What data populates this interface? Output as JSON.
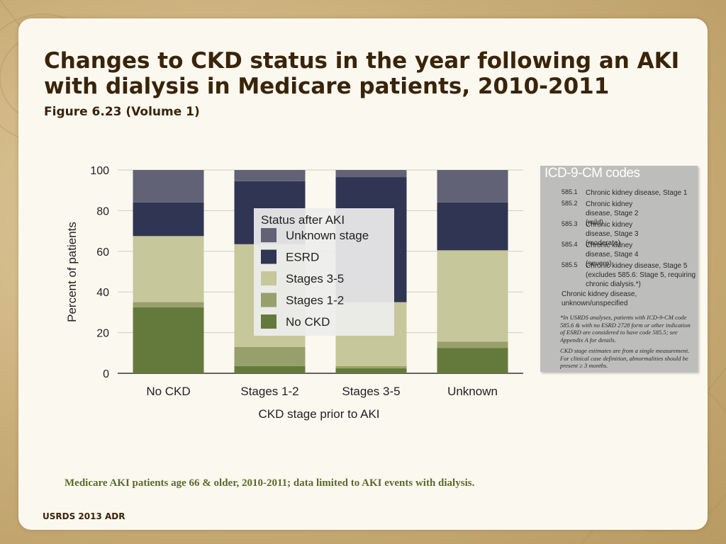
{
  "slide": {
    "title": "Changes to CKD status in the year following an AKI with dialysis in Medicare patients, 2010-2011",
    "subtitle": "Figure 6.23 (Volume 1)",
    "note": "Medicare AKI patients age 66 & older, 2010-2011; data limited to AKI events with dialysis.",
    "footer": "USRDS 2013 ADR"
  },
  "codes_box": {
    "title": "ICD-9-CM codes",
    "entries": [
      {
        "code": "585.1",
        "desc": "Chronic kidney disease, Stage 1"
      },
      {
        "code": "585.2",
        "desc": "Chronic kidney disease, Stage 2 (mild)"
      },
      {
        "code": "585.3",
        "desc": "Chronic kidney disease, Stage 3 (moderate)"
      },
      {
        "code": "585.4",
        "desc": "Chronic kidney disease, Stage 4 (severe)"
      },
      {
        "code": "585.5",
        "desc": "Chronic kidney disease, Stage 5 (excludes 585.6: Stage 5, requiring chronic dialysis.*)"
      }
    ],
    "unspecified": "Chronic kidney disease, unknown/unspecified",
    "footnote_1": "*In USRDS analyses, patients with ICD-9-CM code 585.6 & with no ESRD 2728 form or other indication of ESRD are considered to have code 585.5; see Appendix A for details.",
    "footnote_2": "CKD stage estimates are from a single measurement. For clinical case definition, abnormalities should be present ≥ 3 months."
  },
  "chart_data": {
    "type": "bar",
    "stacked": true,
    "categories": [
      "No CKD",
      "Stages 1-2",
      "Stages 3-5",
      "Unknown"
    ],
    "series": [
      {
        "name": "No CKD",
        "color": "#647a3c",
        "values": [
          32.5,
          3.5,
          2.5,
          12.5
        ]
      },
      {
        "name": "Stages 1-2",
        "color": "#97a06a",
        "values": [
          2.5,
          9.5,
          1.0,
          3.0
        ]
      },
      {
        "name": "Stages 3-5",
        "color": "#c6c79a",
        "values": [
          32.5,
          50.5,
          31.5,
          45.0
        ]
      },
      {
        "name": "ESRD",
        "color": "#2f3552",
        "values": [
          16.5,
          31.0,
          61.5,
          23.5
        ]
      },
      {
        "name": "Unknown stage",
        "color": "#616276",
        "values": [
          16.0,
          5.5,
          3.5,
          16.0
        ]
      }
    ],
    "xlabel": "CKD stage prior to AKI",
    "ylabel": "Percent of patients",
    "ylim": [
      0,
      100
    ],
    "yticks": [
      0,
      20,
      40,
      60,
      80,
      100
    ],
    "grid": true,
    "legend_title": "Status after AKI",
    "legend_order": [
      "Unknown stage",
      "ESRD",
      "Stages 3-5",
      "Stages 1-2",
      "No CKD"
    ],
    "legend_position": "inside-top-center"
  }
}
